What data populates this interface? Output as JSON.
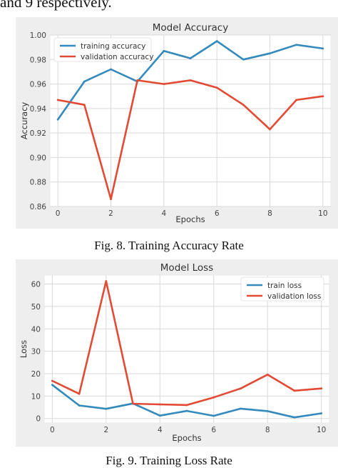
{
  "page": {
    "top_text": "and 9 respectively.",
    "caption1": "Fig. 8. Training Accuracy Rate",
    "caption2": "Fig. 9. Training Loss Rate"
  },
  "chart_data": [
    {
      "type": "line",
      "title": "Model Accuracy",
      "xlabel": "Epochs",
      "ylabel": "Accuracy",
      "x": [
        0,
        1,
        2,
        3,
        4,
        5,
        6,
        7,
        8,
        9,
        10
      ],
      "xlim": [
        -0.3,
        10.3
      ],
      "ylim": [
        0.86,
        1.0
      ],
      "xticks": [
        0,
        2,
        4,
        6,
        8,
        10
      ],
      "yticks": [
        0.86,
        0.88,
        0.9,
        0.92,
        0.94,
        0.96,
        0.98,
        1.0
      ],
      "ytick_labels": [
        "0.86",
        "0.88",
        "0.90",
        "0.92",
        "0.94",
        "0.96",
        "0.98",
        "1.00"
      ],
      "grid": true,
      "legend_position": "top-left",
      "series": [
        {
          "name": "training accuracy",
          "color": "#348abd",
          "values": [
            0.931,
            0.962,
            0.972,
            0.962,
            0.987,
            0.981,
            0.995,
            0.98,
            0.985,
            0.992,
            0.989
          ]
        },
        {
          "name": "validation accuracy",
          "color": "#e24a33",
          "values": [
            0.947,
            0.943,
            0.866,
            0.963,
            0.96,
            0.963,
            0.957,
            0.943,
            0.923,
            0.947,
            0.95
          ]
        }
      ]
    },
    {
      "type": "line",
      "title": "Model Loss",
      "xlabel": "Epochs",
      "ylabel": "Loss",
      "x": [
        0,
        1,
        2,
        3,
        4,
        5,
        6,
        7,
        8,
        9,
        10
      ],
      "xlim": [
        -0.3,
        10.3
      ],
      "ylim": [
        -2,
        64
      ],
      "xticks": [
        0,
        2,
        4,
        6,
        8,
        10
      ],
      "yticks": [
        0,
        10,
        20,
        30,
        40,
        50,
        60
      ],
      "ytick_labels": [
        "0",
        "10",
        "20",
        "30",
        "40",
        "50",
        "60"
      ],
      "grid": true,
      "legend_position": "top-right",
      "series": [
        {
          "name": "train loss",
          "color": "#348abd",
          "values": [
            15,
            5.8,
            4.3,
            6.7,
            1.3,
            3.4,
            1.2,
            4.4,
            3.3,
            0.5,
            2.3
          ]
        },
        {
          "name": "validation loss",
          "color": "#e24a33",
          "values": [
            16.8,
            11,
            61.3,
            6.6,
            6.3,
            6.0,
            9.4,
            13.4,
            19.6,
            12.4,
            13.4
          ]
        }
      ]
    }
  ]
}
